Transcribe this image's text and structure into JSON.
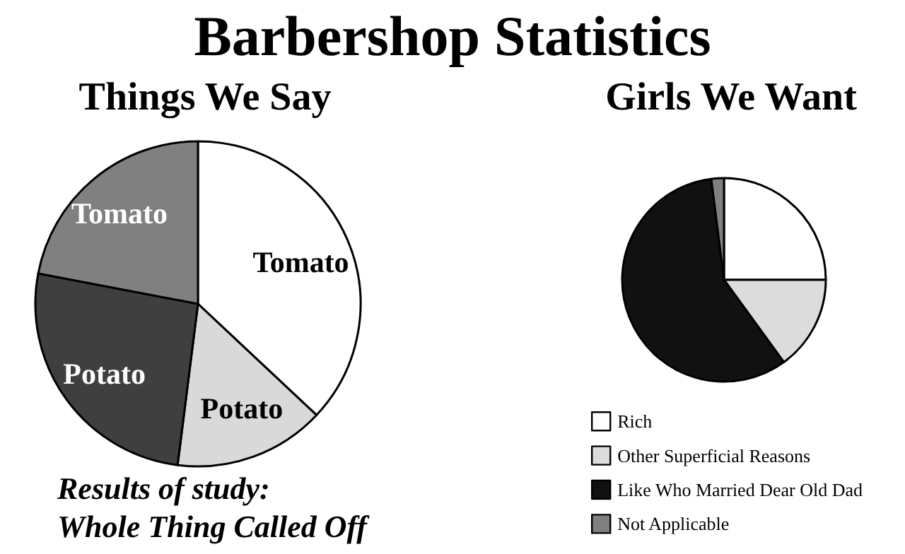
{
  "chart_data": [
    {
      "type": "pie",
      "title": "Barbershop Statistics",
      "subtitle": "Things We Say",
      "categories": [
        "Tomato",
        "Potato",
        "Potato",
        "Tomato"
      ],
      "values": [
        37,
        15,
        26,
        22
      ],
      "colors": [
        "#ffffff",
        "#d9d9d9",
        "#3f3f3f",
        "#808080"
      ],
      "annotations": [
        "Results of study:\nWhole Thing Called Off"
      ],
      "legend": false
    },
    {
      "type": "pie",
      "title": "Girls We Want",
      "categories": [
        "Rich",
        "Other Superficial Reasons",
        "Like Who Married Dear Old Dad",
        "Not Applicable"
      ],
      "values": [
        25,
        15,
        58,
        2
      ],
      "colors": [
        "#ffffff",
        "#dcdcdc",
        "#111111",
        "#808080"
      ],
      "legend": "bottom left"
    }
  ]
}
